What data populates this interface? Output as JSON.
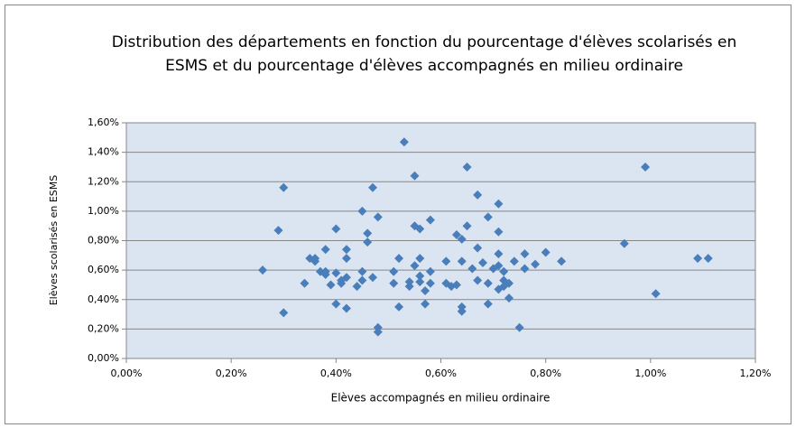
{
  "chart_data": {
    "type": "scatter",
    "title": "Distribution des départements en fonction du pourcentage d'élèves scolarisés en ESMS et du pourcentage d'élèves accompagnés en milieu ordinaire",
    "x_label": "Elèves accompagnés en milieu ordinaire",
    "y_label": "Elèves scolarisés en ESMS",
    "color": "#4a7ebb",
    "grid": true,
    "xlim": [
      0,
      1.2
    ],
    "ylim": [
      0,
      1.6
    ],
    "xticks": [
      {
        "value": 0,
        "label": "0,00%"
      },
      {
        "value": 0.2,
        "label": "0,20%"
      },
      {
        "value": 0.4,
        "label": "0,40%"
      },
      {
        "value": 0.6,
        "label": "0,60%"
      },
      {
        "value": 0.8,
        "label": "0,80%"
      },
      {
        "value": 1.0,
        "label": "1,00%"
      },
      {
        "value": 1.2,
        "label": "1,20%"
      }
    ],
    "yticks": [
      {
        "value": 0,
        "label": "0,00%"
      },
      {
        "value": 0.2,
        "label": "0,20%"
      },
      {
        "value": 0.4,
        "label": "0,40%"
      },
      {
        "value": 0.6,
        "label": "0,60%"
      },
      {
        "value": 0.8,
        "label": "0,80%"
      },
      {
        "value": 1.0,
        "label": "1,00%"
      },
      {
        "value": 1.2,
        "label": "1,20%"
      },
      {
        "value": 1.4,
        "label": "1,40%"
      },
      {
        "value": 1.6,
        "label": "1,60%"
      }
    ],
    "x": [
      0.26,
      0.29,
      0.3,
      0.3,
      0.34,
      0.35,
      0.36,
      0.36,
      0.37,
      0.38,
      0.38,
      0.38,
      0.39,
      0.4,
      0.4,
      0.4,
      0.41,
      0.41,
      0.42,
      0.42,
      0.42,
      0.42,
      0.44,
      0.45,
      0.45,
      0.45,
      0.46,
      0.46,
      0.47,
      0.47,
      0.48,
      0.48,
      0.48,
      0.51,
      0.51,
      0.52,
      0.52,
      0.53,
      0.54,
      0.54,
      0.55,
      0.55,
      0.55,
      0.56,
      0.56,
      0.56,
      0.56,
      0.57,
      0.57,
      0.58,
      0.58,
      0.58,
      0.61,
      0.61,
      0.62,
      0.63,
      0.63,
      0.64,
      0.64,
      0.64,
      0.65,
      0.65,
      0.64,
      0.66,
      0.67,
      0.67,
      0.67,
      0.68,
      0.69,
      0.69,
      0.69,
      0.7,
      0.71,
      0.71,
      0.71,
      0.71,
      0.71,
      0.72,
      0.72,
      0.72,
      0.73,
      0.73,
      0.74,
      0.75,
      0.76,
      0.76,
      0.78,
      0.8,
      0.83,
      0.95,
      0.99,
      1.01,
      1.09,
      1.11
    ],
    "values": [
      0.6,
      0.87,
      1.16,
      0.31,
      0.51,
      0.68,
      0.68,
      0.66,
      0.59,
      0.74,
      0.57,
      0.59,
      0.5,
      0.88,
      0.37,
      0.58,
      0.51,
      0.53,
      0.68,
      0.34,
      0.74,
      0.55,
      0.49,
      0.53,
      1.0,
      0.59,
      0.79,
      0.85,
      1.16,
      0.55,
      0.96,
      0.21,
      0.18,
      0.51,
      0.59,
      0.68,
      0.35,
      1.47,
      0.49,
      0.52,
      0.63,
      0.9,
      1.24,
      0.52,
      0.88,
      0.68,
      0.56,
      0.37,
      0.46,
      0.59,
      0.94,
      0.51,
      0.51,
      0.66,
      0.49,
      0.84,
      0.5,
      0.35,
      0.81,
      0.66,
      0.9,
      1.3,
      0.32,
      0.61,
      0.53,
      1.11,
      0.75,
      0.65,
      0.51,
      0.37,
      0.96,
      0.61,
      0.71,
      0.86,
      0.63,
      0.47,
      1.05,
      0.59,
      0.49,
      0.53,
      0.51,
      0.41,
      0.66,
      0.21,
      0.71,
      0.61,
      0.64,
      0.72,
      0.66,
      0.78,
      1.3,
      0.44,
      0.68,
      0.68
    ]
  }
}
